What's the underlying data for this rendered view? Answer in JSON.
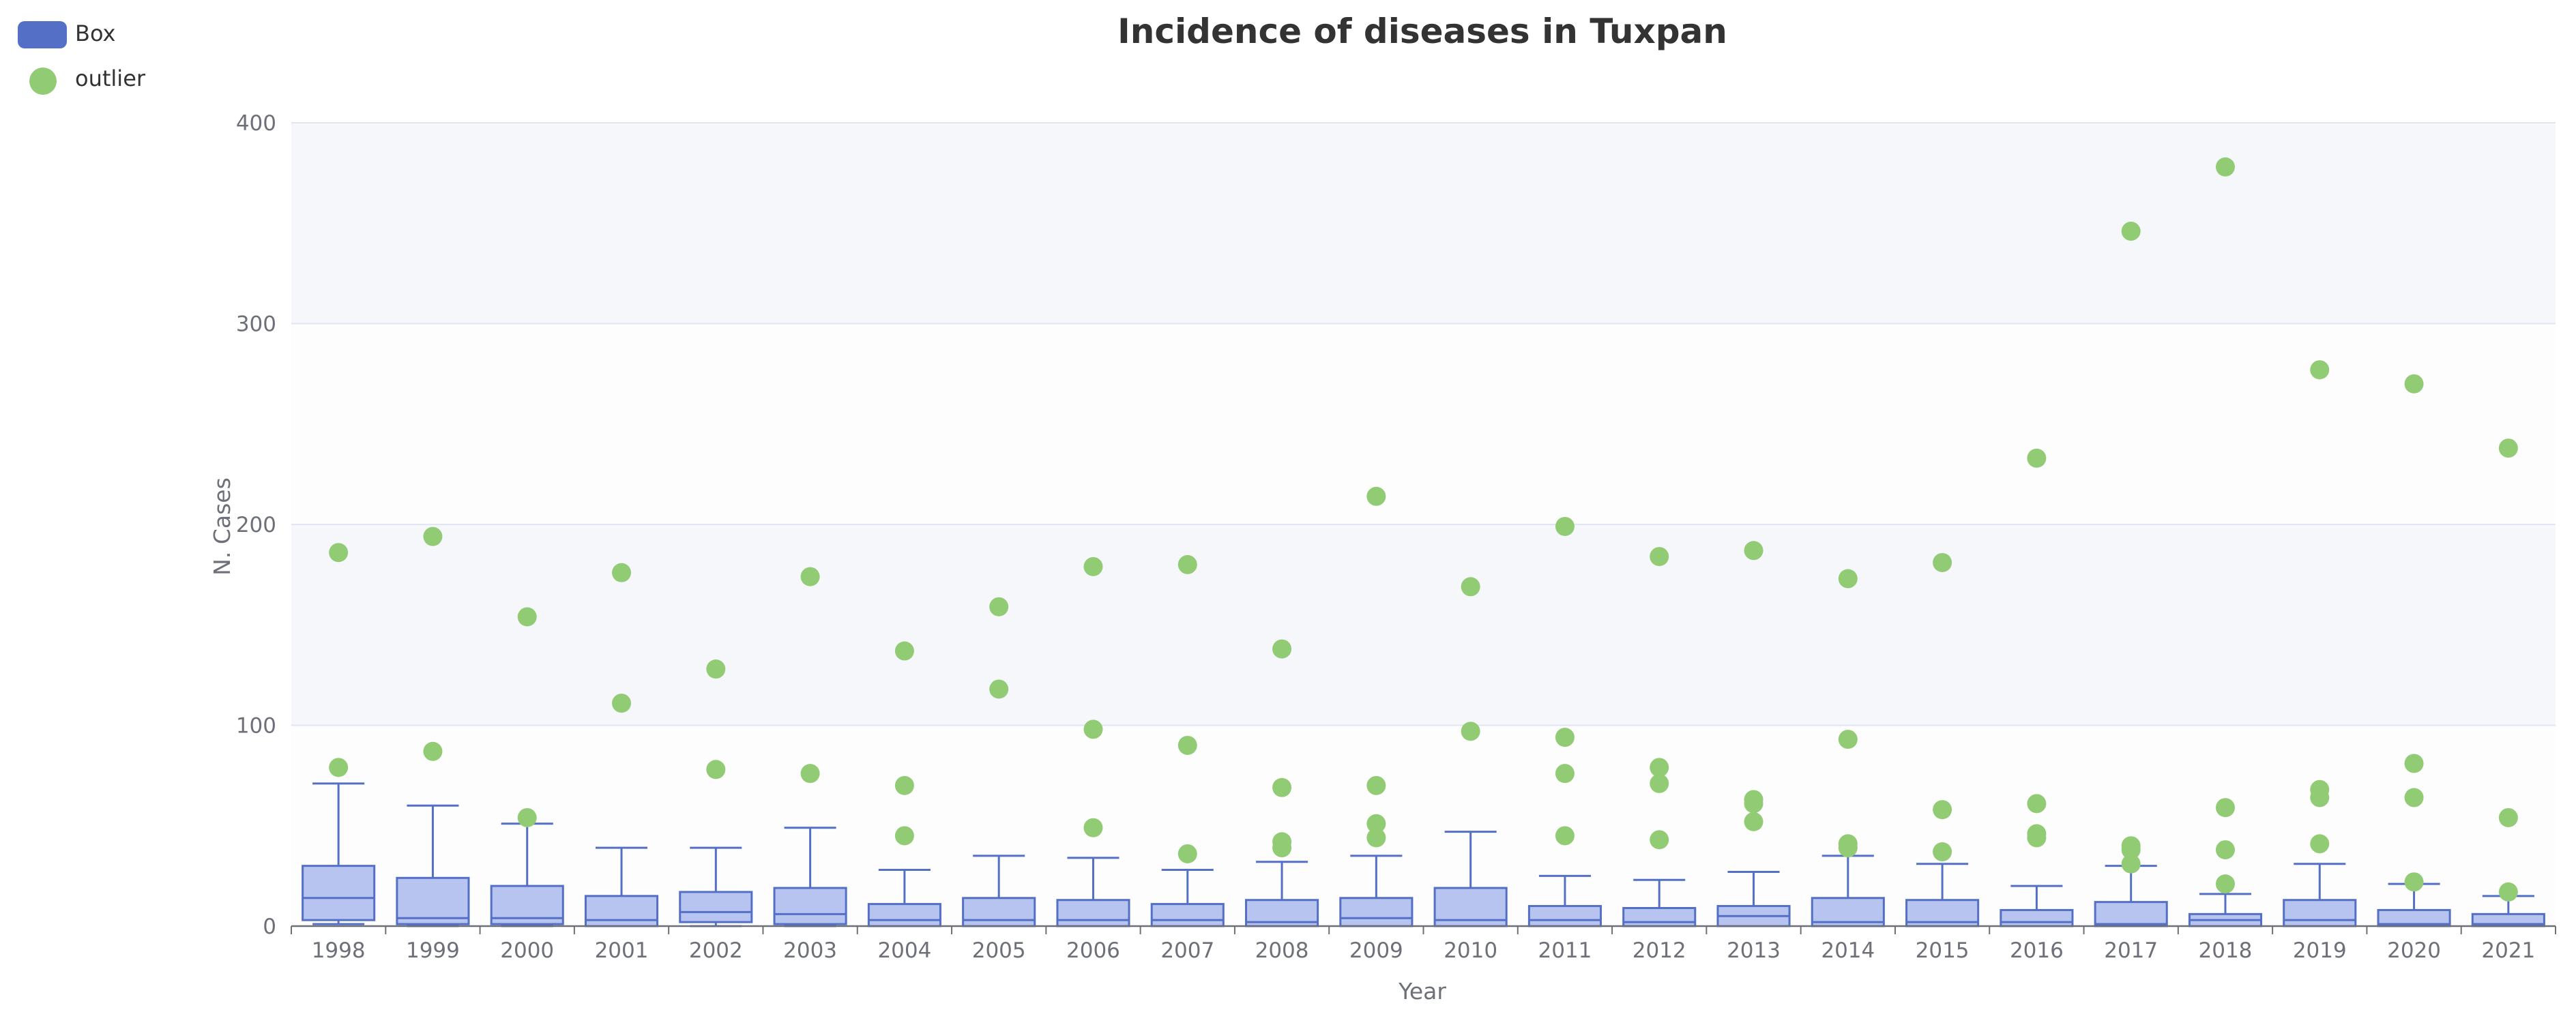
{
  "chart_data": {
    "type": "boxplot",
    "title": "Incidence of diseases in Tuxpan",
    "xlabel": "Year",
    "ylabel": "N. Cases",
    "ylim": [
      0,
      400
    ],
    "yticks": [
      0,
      100,
      200,
      300,
      400
    ],
    "grid": true,
    "legend": {
      "placement": "top-left",
      "entries": [
        {
          "label": "Box",
          "symbol": "box",
          "color": "#5470c6"
        },
        {
          "label": "outlier",
          "symbol": "circle",
          "color": "#91cc75"
        }
      ]
    },
    "colors": {
      "box_fill": "#b8c4f0",
      "box_stroke": "#5470c6",
      "outlier": "#91cc75",
      "band": "#f5f7fb",
      "grid": "#e0e6f1",
      "axis": "#6e7079",
      "title": "#333333"
    },
    "categories": [
      "1998",
      "1999",
      "2000",
      "2001",
      "2002",
      "2003",
      "2004",
      "2005",
      "2006",
      "2007",
      "2008",
      "2009",
      "2010",
      "2011",
      "2012",
      "2013",
      "2014",
      "2015",
      "2016",
      "2017",
      "2018",
      "2019",
      "2020",
      "2021"
    ],
    "boxes": [
      {
        "min": 1,
        "q1": 3,
        "median": 14,
        "q3": 30,
        "max": 71
      },
      {
        "min": 0,
        "q1": 1,
        "median": 4,
        "q3": 24,
        "max": 60
      },
      {
        "min": 0,
        "q1": 1,
        "median": 4,
        "q3": 20,
        "max": 51
      },
      {
        "min": 0,
        "q1": 0,
        "median": 3,
        "q3": 15,
        "max": 39
      },
      {
        "min": 0,
        "q1": 2,
        "median": 7,
        "q3": 17,
        "max": 39
      },
      {
        "min": 0,
        "q1": 1,
        "median": 6,
        "q3": 19,
        "max": 49
      },
      {
        "min": 0,
        "q1": 0,
        "median": 3,
        "q3": 11,
        "max": 28
      },
      {
        "min": 0,
        "q1": 0,
        "median": 3,
        "q3": 14,
        "max": 35
      },
      {
        "min": 0,
        "q1": 0,
        "median": 3,
        "q3": 13,
        "max": 34
      },
      {
        "min": 0,
        "q1": 0,
        "median": 3,
        "q3": 11,
        "max": 28
      },
      {
        "min": 0,
        "q1": 0,
        "median": 2,
        "q3": 13,
        "max": 32
      },
      {
        "min": 0,
        "q1": 0,
        "median": 4,
        "q3": 14,
        "max": 35
      },
      {
        "min": 0,
        "q1": 0,
        "median": 3,
        "q3": 19,
        "max": 47
      },
      {
        "min": 0,
        "q1": 0,
        "median": 3,
        "q3": 10,
        "max": 25
      },
      {
        "min": 0,
        "q1": 0,
        "median": 2,
        "q3": 9,
        "max": 23
      },
      {
        "min": 0,
        "q1": 0,
        "median": 5,
        "q3": 10,
        "max": 27
      },
      {
        "min": 0,
        "q1": 0,
        "median": 2,
        "q3": 14,
        "max": 35
      },
      {
        "min": 0,
        "q1": 0,
        "median": 2,
        "q3": 13,
        "max": 31
      },
      {
        "min": 0,
        "q1": 0,
        "median": 2,
        "q3": 8,
        "max": 20
      },
      {
        "min": 0,
        "q1": 0,
        "median": 1,
        "q3": 12,
        "max": 30
      },
      {
        "min": 0,
        "q1": 0,
        "median": 3,
        "q3": 6,
        "max": 16
      },
      {
        "min": 0,
        "q1": 0,
        "median": 3,
        "q3": 13,
        "max": 31
      },
      {
        "min": 0,
        "q1": 0,
        "median": 1,
        "q3": 8,
        "max": 21
      },
      {
        "min": 0,
        "q1": 0,
        "median": 1,
        "q3": 6,
        "max": 15
      }
    ],
    "outliers": [
      {
        "year": "1998",
        "value": 186
      },
      {
        "year": "1998",
        "value": 79
      },
      {
        "year": "1999",
        "value": 194
      },
      {
        "year": "1999",
        "value": 87
      },
      {
        "year": "2000",
        "value": 154
      },
      {
        "year": "2000",
        "value": 54
      },
      {
        "year": "2001",
        "value": 176
      },
      {
        "year": "2001",
        "value": 111
      },
      {
        "year": "2002",
        "value": 128
      },
      {
        "year": "2002",
        "value": 78
      },
      {
        "year": "2003",
        "value": 174
      },
      {
        "year": "2003",
        "value": 76
      },
      {
        "year": "2004",
        "value": 137
      },
      {
        "year": "2004",
        "value": 70
      },
      {
        "year": "2004",
        "value": 45
      },
      {
        "year": "2005",
        "value": 159
      },
      {
        "year": "2005",
        "value": 118
      },
      {
        "year": "2006",
        "value": 179
      },
      {
        "year": "2006",
        "value": 98
      },
      {
        "year": "2006",
        "value": 49
      },
      {
        "year": "2007",
        "value": 180
      },
      {
        "year": "2007",
        "value": 90
      },
      {
        "year": "2007",
        "value": 36
      },
      {
        "year": "2008",
        "value": 138
      },
      {
        "year": "2008",
        "value": 69
      },
      {
        "year": "2008",
        "value": 42
      },
      {
        "year": "2008",
        "value": 39
      },
      {
        "year": "2009",
        "value": 214
      },
      {
        "year": "2009",
        "value": 70
      },
      {
        "year": "2009",
        "value": 51
      },
      {
        "year": "2009",
        "value": 44
      },
      {
        "year": "2010",
        "value": 169
      },
      {
        "year": "2010",
        "value": 97
      },
      {
        "year": "2011",
        "value": 199
      },
      {
        "year": "2011",
        "value": 94
      },
      {
        "year": "2011",
        "value": 76
      },
      {
        "year": "2011",
        "value": 45
      },
      {
        "year": "2012",
        "value": 184
      },
      {
        "year": "2012",
        "value": 79
      },
      {
        "year": "2012",
        "value": 71
      },
      {
        "year": "2012",
        "value": 43
      },
      {
        "year": "2013",
        "value": 187
      },
      {
        "year": "2013",
        "value": 63
      },
      {
        "year": "2013",
        "value": 61
      },
      {
        "year": "2013",
        "value": 52
      },
      {
        "year": "2014",
        "value": 173
      },
      {
        "year": "2014",
        "value": 93
      },
      {
        "year": "2014",
        "value": 41
      },
      {
        "year": "2014",
        "value": 39
      },
      {
        "year": "2015",
        "value": 181
      },
      {
        "year": "2015",
        "value": 58
      },
      {
        "year": "2015",
        "value": 37
      },
      {
        "year": "2016",
        "value": 233
      },
      {
        "year": "2016",
        "value": 61
      },
      {
        "year": "2016",
        "value": 46
      },
      {
        "year": "2016",
        "value": 44
      },
      {
        "year": "2017",
        "value": 346
      },
      {
        "year": "2017",
        "value": 40
      },
      {
        "year": "2017",
        "value": 38
      },
      {
        "year": "2017",
        "value": 31
      },
      {
        "year": "2018",
        "value": 378
      },
      {
        "year": "2018",
        "value": 59
      },
      {
        "year": "2018",
        "value": 38
      },
      {
        "year": "2018",
        "value": 21
      },
      {
        "year": "2019",
        "value": 277
      },
      {
        "year": "2019",
        "value": 68
      },
      {
        "year": "2019",
        "value": 64
      },
      {
        "year": "2019",
        "value": 41
      },
      {
        "year": "2020",
        "value": 270
      },
      {
        "year": "2020",
        "value": 81
      },
      {
        "year": "2020",
        "value": 64
      },
      {
        "year": "2020",
        "value": 22
      },
      {
        "year": "2021",
        "value": 238
      },
      {
        "year": "2021",
        "value": 54
      },
      {
        "year": "2021",
        "value": 17
      }
    ]
  }
}
